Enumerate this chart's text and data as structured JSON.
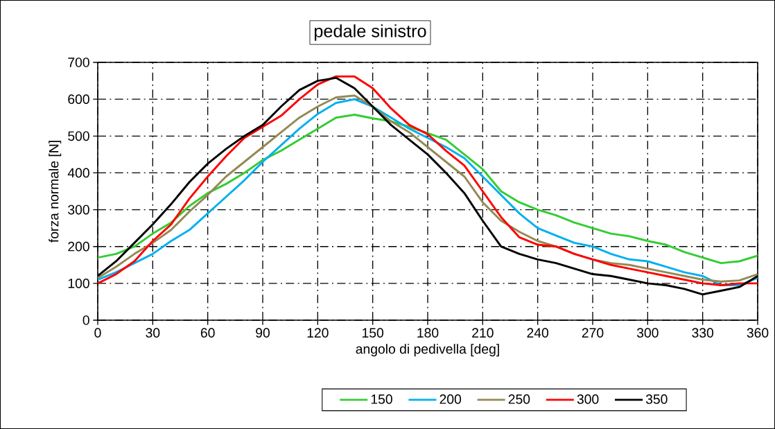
{
  "chart_data": {
    "type": "line",
    "title": "pedale sinistro",
    "xlabel": "angolo di pedivella [deg]",
    "ylabel": "forza normale [N]",
    "x": [
      0,
      10,
      20,
      30,
      40,
      50,
      60,
      70,
      80,
      90,
      100,
      110,
      120,
      130,
      140,
      150,
      160,
      170,
      180,
      190,
      200,
      210,
      220,
      230,
      240,
      250,
      260,
      270,
      280,
      290,
      300,
      310,
      320,
      330,
      340,
      350,
      360
    ],
    "series": [
      {
        "name": "150",
        "color": "#33cc33",
        "values": [
          170,
          180,
          200,
          235,
          265,
          310,
          345,
          370,
          400,
          435,
          460,
          490,
          520,
          550,
          558,
          548,
          540,
          525,
          508,
          490,
          450,
          410,
          350,
          320,
          300,
          285,
          265,
          250,
          235,
          228,
          215,
          205,
          185,
          170,
          155,
          160,
          175
        ]
      },
      {
        "name": "200",
        "color": "#00b0f0",
        "values": [
          110,
          130,
          155,
          180,
          215,
          245,
          290,
          335,
          380,
          430,
          475,
          520,
          560,
          590,
          600,
          580,
          550,
          520,
          495,
          470,
          440,
          390,
          340,
          290,
          250,
          230,
          210,
          200,
          180,
          165,
          160,
          145,
          130,
          120,
          95,
          95,
          115
        ]
      },
      {
        "name": "250",
        "color": "#938953",
        "values": [
          115,
          145,
          180,
          210,
          245,
          295,
          340,
          390,
          430,
          470,
          510,
          550,
          580,
          605,
          610,
          580,
          540,
          510,
          470,
          430,
          390,
          320,
          270,
          240,
          215,
          200,
          180,
          165,
          155,
          150,
          140,
          130,
          120,
          110,
          105,
          108,
          125
        ]
      },
      {
        "name": "300",
        "color": "#ff0000",
        "values": [
          100,
          125,
          160,
          215,
          260,
          330,
          390,
          445,
          495,
          525,
          555,
          600,
          640,
          662,
          662,
          630,
          575,
          530,
          505,
          460,
          420,
          350,
          280,
          225,
          205,
          200,
          180,
          165,
          150,
          140,
          130,
          120,
          110,
          100,
          95,
          100,
          100
        ]
      },
      {
        "name": "350",
        "color": "#000000",
        "values": [
          120,
          160,
          210,
          260,
          315,
          375,
          425,
          465,
          500,
          530,
          580,
          625,
          650,
          658,
          630,
          580,
          530,
          490,
          450,
          400,
          345,
          270,
          200,
          180,
          165,
          155,
          140,
          125,
          120,
          110,
          100,
          95,
          85,
          70,
          80,
          90,
          120
        ]
      }
    ],
    "xlim": [
      0,
      360
    ],
    "ylim": [
      0,
      700
    ],
    "xticks": [
      0,
      30,
      60,
      90,
      120,
      150,
      180,
      210,
      240,
      270,
      300,
      330,
      360
    ],
    "yticks": [
      0,
      100,
      200,
      300,
      400,
      500,
      600,
      700
    ],
    "grid": true,
    "legend": "bottom"
  }
}
